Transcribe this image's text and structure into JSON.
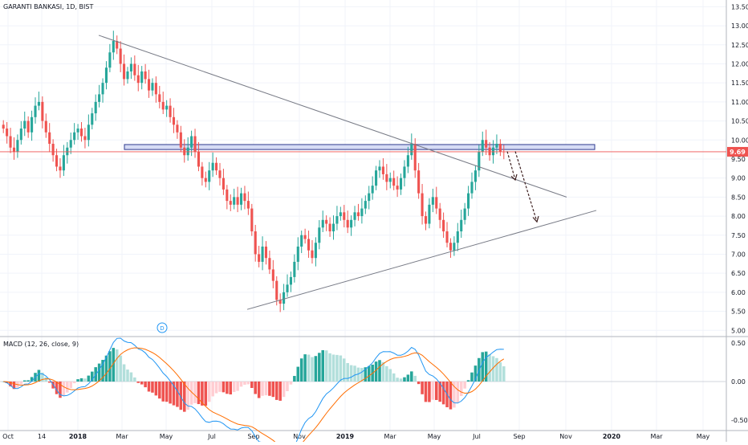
{
  "chart_data": [
    {
      "type": "candlestick",
      "title": "GARANTI BANKASI, 1D, BIST",
      "last_price": {
        "value": 9.69,
        "label": "9.69",
        "color": "#ef5350"
      },
      "y_ticks": [
        "13.50",
        "13.00",
        "12.50",
        "12.00",
        "11.50",
        "11.00",
        "10.50",
        "10.00",
        "9.50",
        "9.00",
        "8.50",
        "8.00",
        "7.50",
        "7.00",
        "6.50",
        "6.00",
        "5.50",
        "5.00"
      ],
      "ylim": [
        4.9,
        13.55
      ],
      "x_ticks": [
        "Oct",
        "14",
        "2018",
        "Mar",
        "May",
        "Jul",
        "Sep",
        "Nov",
        "2019",
        "Mar",
        "May",
        "Jul",
        "Sep",
        "Nov",
        "2020",
        "Mar",
        "May"
      ],
      "closes": [
        10.3,
        10.1,
        9.8,
        9.7,
        10.0,
        10.3,
        10.5,
        10.2,
        10.6,
        10.9,
        11.0,
        10.5,
        10.2,
        9.9,
        9.6,
        9.3,
        9.2,
        9.6,
        9.8,
        10.0,
        10.2,
        10.3,
        10.1,
        10.0,
        10.4,
        10.7,
        11.0,
        11.2,
        11.5,
        11.9,
        12.3,
        12.6,
        12.4,
        12.0,
        11.6,
        11.8,
        12.0,
        11.7,
        11.5,
        11.8,
        11.6,
        11.3,
        11.5,
        11.2,
        11.0,
        10.8,
        10.9,
        10.6,
        10.4,
        10.2,
        9.8,
        9.6,
        9.8,
        10.1,
        9.7,
        9.3,
        9.0,
        8.9,
        9.2,
        9.4,
        9.2,
        9.0,
        8.7,
        8.4,
        8.3,
        8.5,
        8.3,
        8.6,
        8.4,
        8.2,
        7.6,
        7.0,
        6.8,
        7.2,
        6.9,
        6.6,
        6.3,
        5.8,
        5.7,
        6.0,
        6.2,
        6.4,
        6.8,
        7.2,
        7.5,
        7.4,
        7.1,
        6.9,
        7.3,
        7.7,
        7.9,
        7.8,
        7.6,
        7.8,
        8.0,
        8.1,
        7.9,
        7.7,
        7.9,
        8.1,
        8.0,
        8.2,
        8.4,
        8.6,
        8.8,
        9.2,
        9.3,
        9.1,
        8.9,
        9.0,
        8.8,
        8.7,
        9.0,
        9.3,
        9.6,
        9.9,
        9.2,
        8.6,
        8.0,
        7.8,
        8.3,
        8.5,
        8.2,
        7.9,
        7.6,
        7.3,
        7.1,
        7.3,
        7.6,
        7.9,
        8.2,
        8.6,
        8.9,
        9.2,
        9.7,
        10.0,
        9.8,
        9.6,
        9.8,
        9.9,
        9.7,
        9.69
      ],
      "trendlines": [
        {
          "from": [
            "2018-02",
            12.75
          ],
          "to": [
            "2019-10",
            8.5
          ]
        },
        {
          "from": [
            "2018-08",
            5.55
          ],
          "to": [
            "2019-12",
            8.15
          ]
        }
      ],
      "resistance_zone": [
        9.75,
        9.88
      ],
      "projection_arrows": 2
    },
    {
      "type": "macd",
      "label": "MACD (12, 26, close, 9)",
      "y_ticks": [
        "0.50",
        "0.00",
        "-0.50"
      ],
      "ylim": [
        -0.55,
        0.55
      ]
    }
  ],
  "icons": {
    "dividend_marker": "dividend-badge-icon",
    "dividend_text": "D"
  }
}
